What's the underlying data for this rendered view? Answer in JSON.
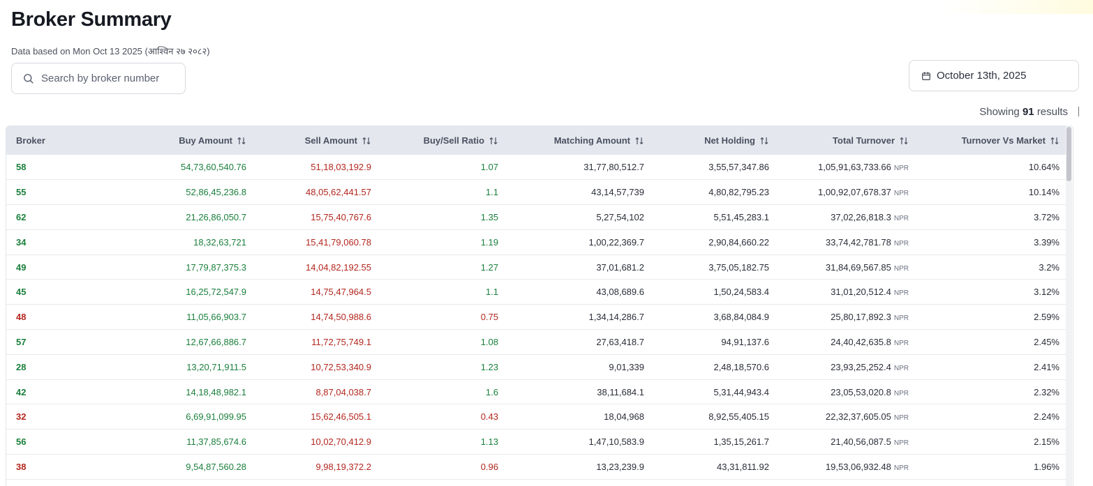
{
  "page": {
    "title": "Broker Summary",
    "subtitle": "Data based on Mon Oct 13 2025 (आश्विन २७ २०८२)"
  },
  "search": {
    "placeholder": "Search by broker number",
    "value": ""
  },
  "date_picker": {
    "label": "October 13th, 2025",
    "icon": "calendar-icon"
  },
  "results": {
    "prefix": "Showing",
    "count": "91",
    "suffix": "results"
  },
  "colors": {
    "positive": "#1a7f3c",
    "negative": "#b3261e",
    "header_bg": "#e4e8ee"
  },
  "table": {
    "columns": [
      "Broker",
      "Buy Amount",
      "Sell Amount",
      "Buy/Sell Ratio",
      "Matching Amount",
      "Net Holding",
      "Total Turnover",
      "Turnover Vs Market"
    ],
    "currency": "NPR",
    "rows": [
      {
        "broker": "58",
        "buy": "54,73,60,540.76",
        "sell": "51,18,03,192.9",
        "ratio": "1.07",
        "matching": "31,77,80,512.7",
        "net": "3,55,57,347.86",
        "turnover": "1,05,91,63,733.66",
        "market": "10.64%",
        "status": "positive"
      },
      {
        "broker": "55",
        "buy": "52,86,45,236.8",
        "sell": "48,05,62,441.57",
        "ratio": "1.1",
        "matching": "43,14,57,739",
        "net": "4,80,82,795.23",
        "turnover": "1,00,92,07,678.37",
        "market": "10.14%",
        "status": "positive"
      },
      {
        "broker": "62",
        "buy": "21,26,86,050.7",
        "sell": "15,75,40,767.6",
        "ratio": "1.35",
        "matching": "5,27,54,102",
        "net": "5,51,45,283.1",
        "turnover": "37,02,26,818.3",
        "market": "3.72%",
        "status": "positive"
      },
      {
        "broker": "34",
        "buy": "18,32,63,721",
        "sell": "15,41,79,060.78",
        "ratio": "1.19",
        "matching": "1,00,22,369.7",
        "net": "2,90,84,660.22",
        "turnover": "33,74,42,781.78",
        "market": "3.39%",
        "status": "positive"
      },
      {
        "broker": "49",
        "buy": "17,79,87,375.3",
        "sell": "14,04,82,192.55",
        "ratio": "1.27",
        "matching": "37,01,681.2",
        "net": "3,75,05,182.75",
        "turnover": "31,84,69,567.85",
        "market": "3.2%",
        "status": "positive"
      },
      {
        "broker": "45",
        "buy": "16,25,72,547.9",
        "sell": "14,75,47,964.5",
        "ratio": "1.1",
        "matching": "43,08,689.6",
        "net": "1,50,24,583.4",
        "turnover": "31,01,20,512.4",
        "market": "3.12%",
        "status": "positive"
      },
      {
        "broker": "48",
        "buy": "11,05,66,903.7",
        "sell": "14,74,50,988.6",
        "ratio": "0.75",
        "matching": "1,34,14,286.7",
        "net": "3,68,84,084.9",
        "turnover": "25,80,17,892.3",
        "market": "2.59%",
        "status": "negative"
      },
      {
        "broker": "57",
        "buy": "12,67,66,886.7",
        "sell": "11,72,75,749.1",
        "ratio": "1.08",
        "matching": "27,63,418.7",
        "net": "94,91,137.6",
        "turnover": "24,40,42,635.8",
        "market": "2.45%",
        "status": "positive"
      },
      {
        "broker": "28",
        "buy": "13,20,71,911.5",
        "sell": "10,72,53,340.9",
        "ratio": "1.23",
        "matching": "9,01,339",
        "net": "2,48,18,570.6",
        "turnover": "23,93,25,252.4",
        "market": "2.41%",
        "status": "positive"
      },
      {
        "broker": "42",
        "buy": "14,18,48,982.1",
        "sell": "8,87,04,038.7",
        "ratio": "1.6",
        "matching": "38,11,684.1",
        "net": "5,31,44,943.4",
        "turnover": "23,05,53,020.8",
        "market": "2.32%",
        "status": "positive"
      },
      {
        "broker": "32",
        "buy": "6,69,91,099.95",
        "sell": "15,62,46,505.1",
        "ratio": "0.43",
        "matching": "18,04,968",
        "net": "8,92,55,405.15",
        "turnover": "22,32,37,605.05",
        "market": "2.24%",
        "status": "negative"
      },
      {
        "broker": "56",
        "buy": "11,37,85,674.6",
        "sell": "10,02,70,412.9",
        "ratio": "1.13",
        "matching": "1,47,10,583.9",
        "net": "1,35,15,261.7",
        "turnover": "21,40,56,087.5",
        "market": "2.15%",
        "status": "positive"
      },
      {
        "broker": "38",
        "buy": "9,54,87,560.28",
        "sell": "9,98,19,372.2",
        "ratio": "0.96",
        "matching": "13,23,239.9",
        "net": "43,31,811.92",
        "turnover": "19,53,06,932.48",
        "market": "1.96%",
        "status": "negative"
      }
    ]
  }
}
